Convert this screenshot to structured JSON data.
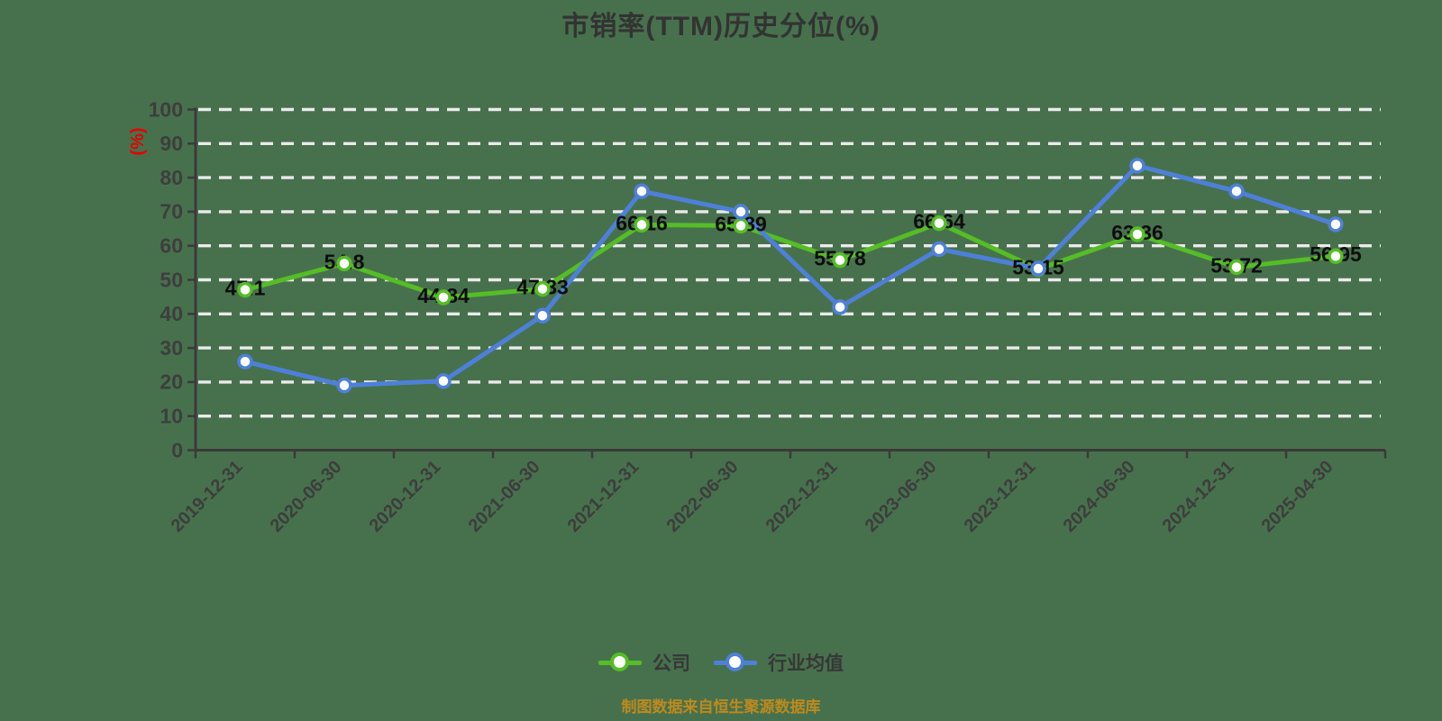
{
  "page": {
    "background_color": "#47714d"
  },
  "chart_data": {
    "type": "line",
    "title": "市销率(TTM)历史分位(%)",
    "ylabel": "(%)",
    "xlabel": "",
    "ylim": [
      0,
      100
    ],
    "ytick_step": 10,
    "grid": "horizontal-dashed",
    "grid_color": "#eaeaea",
    "axis_color": "#3a3a3a",
    "tick_label_color": "#3e3e3e",
    "point_label_color": "#0d0d0d",
    "ylabel_color": "#e60000",
    "legend_position": "bottom",
    "categories": [
      "2019-12-31",
      "2020-06-30",
      "2020-12-31",
      "2021-06-30",
      "2021-12-31",
      "2022-06-30",
      "2022-12-31",
      "2023-06-30",
      "2023-12-31",
      "2024-06-30",
      "2024-12-31",
      "2025-04-30"
    ],
    "series": [
      {
        "name": "公司",
        "color": "#55bd26",
        "show_point_labels": true,
        "values": [
          47.1,
          54.8,
          44.84,
          47.33,
          66.16,
          65.89,
          55.78,
          66.64,
          53.15,
          63.36,
          53.72,
          56.95
        ]
      },
      {
        "name": "行业均值",
        "color": "#4e80d9",
        "show_point_labels": false,
        "values": [
          26,
          19,
          20.3,
          39.5,
          76,
          70,
          42,
          59,
          53.3,
          83.5,
          76,
          66.3
        ]
      }
    ]
  },
  "footer": {
    "note": "制图数据来自恒生聚源数据库"
  }
}
